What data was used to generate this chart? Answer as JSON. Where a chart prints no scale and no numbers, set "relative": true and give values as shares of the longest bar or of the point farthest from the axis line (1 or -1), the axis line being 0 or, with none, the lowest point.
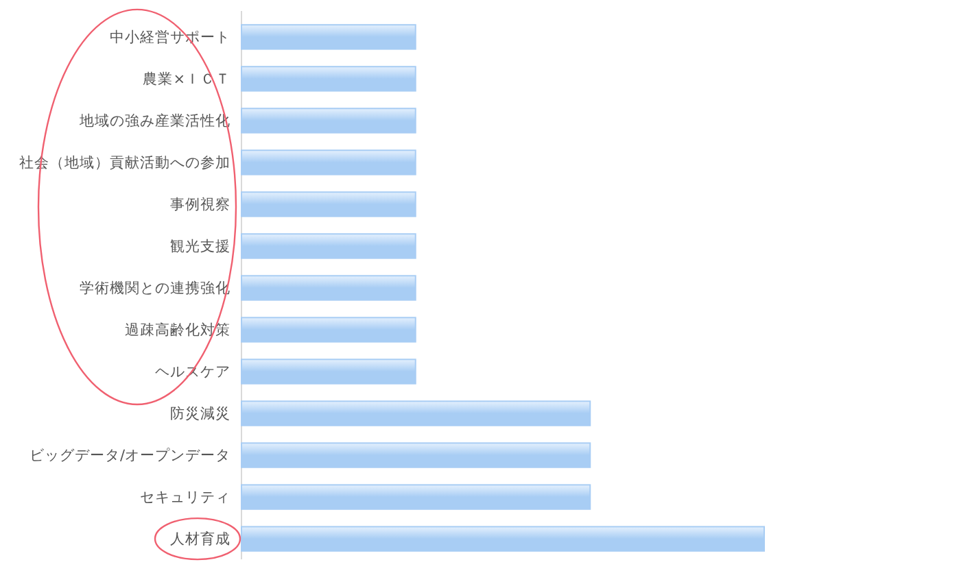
{
  "chart_data": {
    "type": "bar",
    "orientation": "horizontal",
    "relative": true,
    "color": "#a8cdf4",
    "categories": [
      "中小経営サポート",
      "農業×ＩＣＴ",
      "地域の強み産業活性化",
      "社会（地域）貢献活動への参加",
      "事例視察",
      "観光支援",
      "学術機関との連携強化",
      "過疎高齢化対策",
      "ヘルスケア",
      "防災減災",
      "ビッグデータ/オープンデータ",
      "セキュリティ",
      "人材育成"
    ],
    "values": [
      0.333,
      0.333,
      0.333,
      0.333,
      0.333,
      0.333,
      0.333,
      0.333,
      0.333,
      0.667,
      0.667,
      0.667,
      1
    ]
  }
}
